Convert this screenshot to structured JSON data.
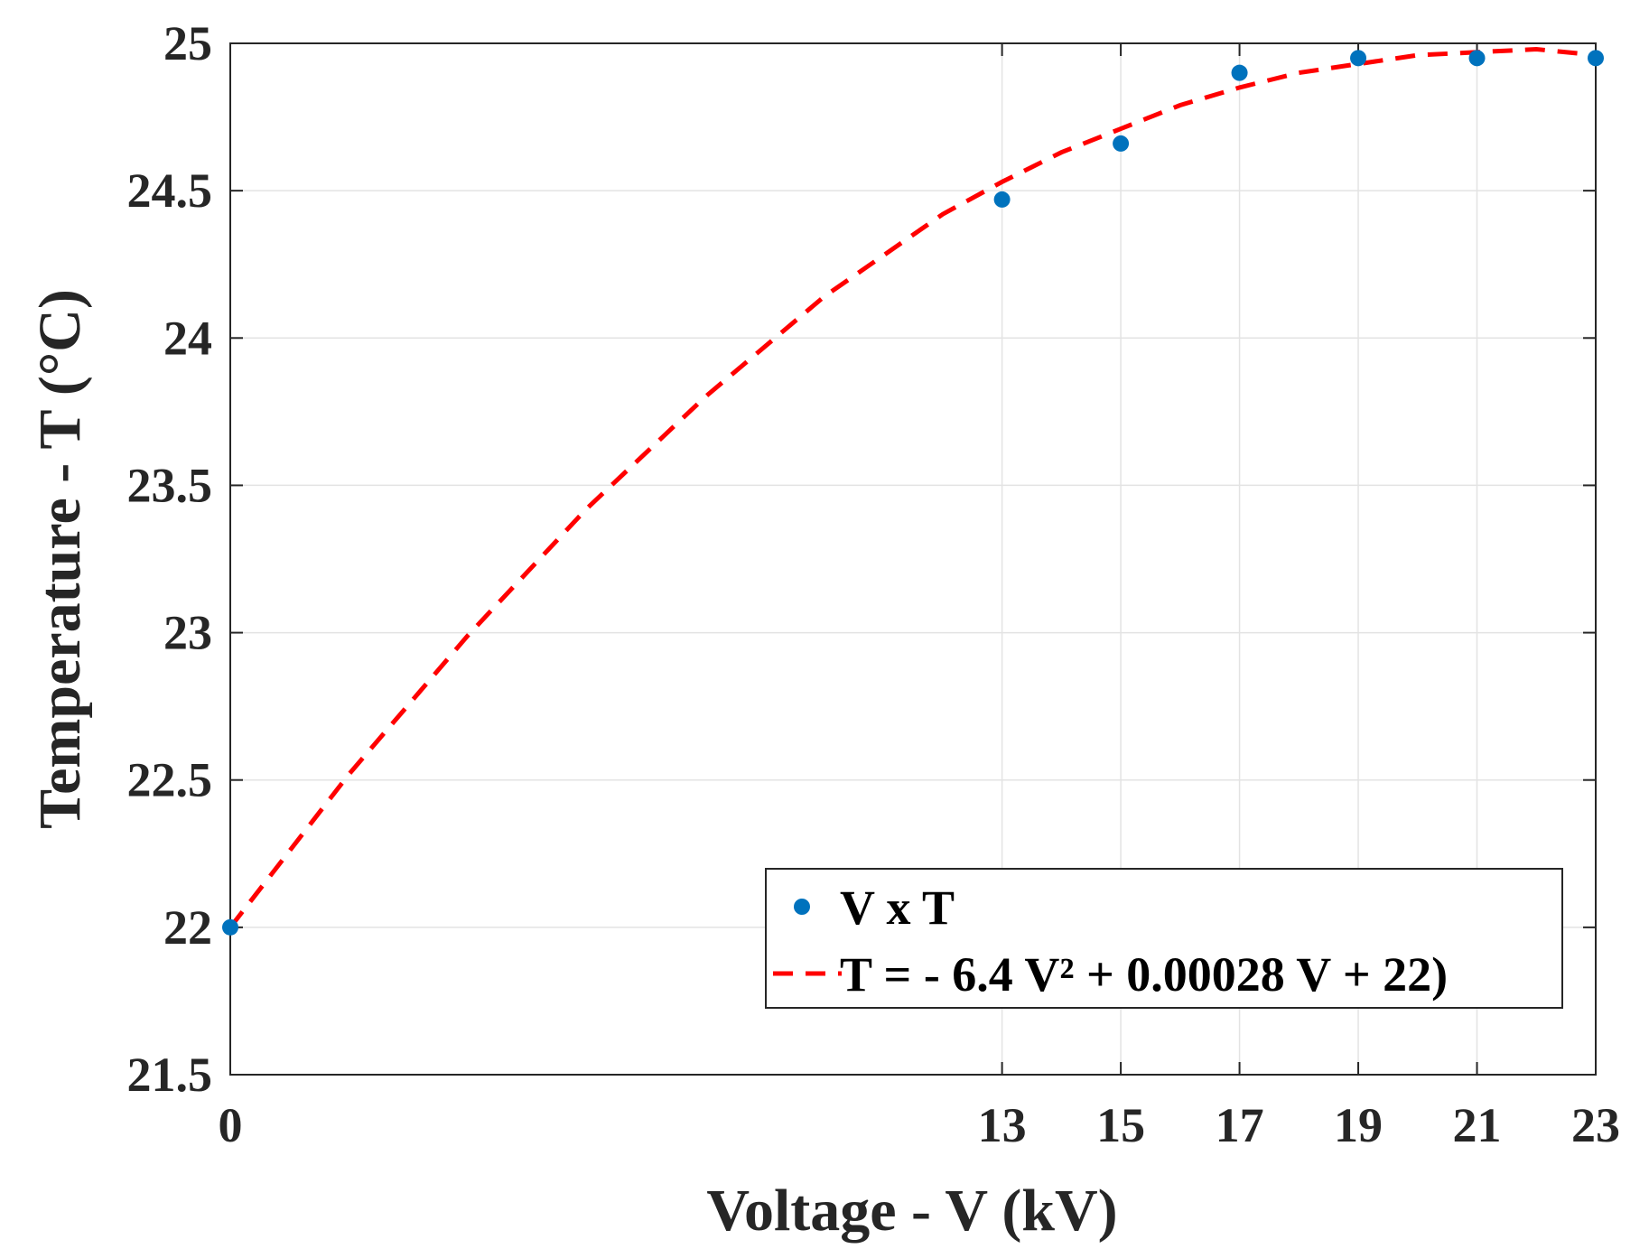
{
  "chart_data": {
    "type": "scatter",
    "xlabel": "Voltage - V (kV)",
    "ylabel": "Temperature - T (°C)",
    "xlim": [
      0,
      23
    ],
    "ylim": [
      21.5,
      25
    ],
    "xticks": [
      0,
      13,
      15,
      17,
      19,
      21,
      23
    ],
    "xtick_labels": [
      "0",
      "13",
      "15",
      "17",
      "19",
      "21",
      "23"
    ],
    "yticks": [
      21.5,
      22,
      22.5,
      23,
      23.5,
      24,
      24.5,
      25
    ],
    "ytick_labels": [
      "21.5",
      "22",
      "22.5",
      "23",
      "23.5",
      "24",
      "24.5",
      "25"
    ],
    "grid": true,
    "legend_position": "bottom-right",
    "series": [
      {
        "name": "V x T",
        "style": "markers",
        "color": "#0072BD",
        "x": [
          0,
          13,
          15,
          17,
          19,
          21,
          23
        ],
        "y": [
          22.0,
          24.47,
          24.66,
          24.9,
          24.95,
          24.95,
          24.95
        ]
      },
      {
        "name": "T = - 6.4 V² + 0.00028 V + 22)",
        "style": "dashed-line",
        "color": "#FF0000",
        "x": [
          0,
          2,
          4,
          6,
          8,
          10,
          12,
          13,
          14,
          15,
          16,
          17,
          18,
          19,
          20,
          21,
          22,
          23
        ],
        "y": [
          22.0,
          22.52,
          22.99,
          23.42,
          23.8,
          24.14,
          24.42,
          24.53,
          24.63,
          24.71,
          24.79,
          24.85,
          24.9,
          24.93,
          24.96,
          24.97,
          24.98,
          24.96
        ]
      }
    ]
  }
}
